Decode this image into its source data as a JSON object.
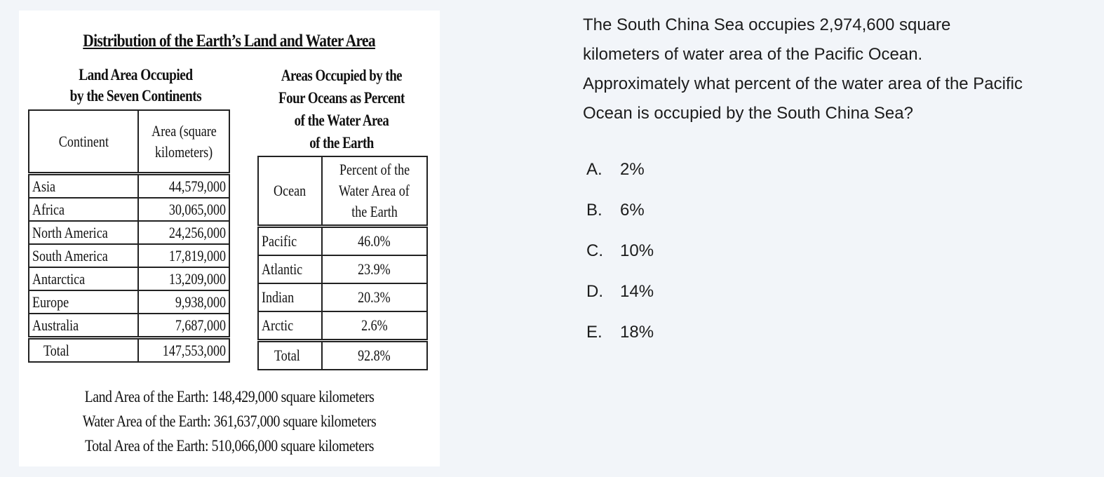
{
  "figure": {
    "title": "Distribution of the Earth’s Land and Water Area",
    "land_heading": [
      "Land Area Occupied",
      "by the Seven Continents"
    ],
    "land_table": {
      "headers": [
        "Continent",
        "Area (square",
        "kilometers)"
      ],
      "rows": [
        {
          "name": "Asia",
          "value": "44,579,000"
        },
        {
          "name": "Africa",
          "value": "30,065,000"
        },
        {
          "name": "North America",
          "value": "24,256,000"
        },
        {
          "name": "South America",
          "value": "17,819,000"
        },
        {
          "name": "Antarctica",
          "value": "13,209,000"
        },
        {
          "name": "Europe",
          "value": "9,938,000"
        },
        {
          "name": "Australia",
          "value": "7,687,000"
        }
      ],
      "total": {
        "name": "Total",
        "value": "147,553,000"
      }
    },
    "ocean_heading": [
      "Areas Occupied by the",
      "Four Oceans as Percent",
      "of the Water Area",
      "of the Earth"
    ],
    "ocean_table": {
      "headers": [
        "Ocean",
        "Percent of the",
        "Water Area of",
        "the Earth"
      ],
      "rows": [
        {
          "name": "Pacific",
          "value": "46.0%"
        },
        {
          "name": "Atlantic",
          "value": "23.9%"
        },
        {
          "name": "Indian",
          "value": "20.3%"
        },
        {
          "name": "Arctic",
          "value": "2.6%"
        }
      ],
      "total": {
        "name": "Total",
        "value": "92.8%"
      }
    },
    "footnotes": [
      "Land Area of the Earth: 148,429,000 square kilometers",
      "Water Area of the Earth: 361,637,000 square kilometers",
      "Total Area of the Earth: 510,066,000 square kilometers"
    ]
  },
  "question": {
    "lines": [
      "The South China Sea occupies 2,974,600 square",
      "kilometers of water area of the Pacific Ocean.",
      "Approximately what percent of the water area of the Pacific",
      "Ocean is occupied by the South China Sea?"
    ],
    "choices": [
      {
        "letter": "A.",
        "text": "2%"
      },
      {
        "letter": "B.",
        "text": "6%"
      },
      {
        "letter": "C.",
        "text": "10%"
      },
      {
        "letter": "D.",
        "text": "14%"
      },
      {
        "letter": "E.",
        "text": "18%"
      }
    ]
  }
}
